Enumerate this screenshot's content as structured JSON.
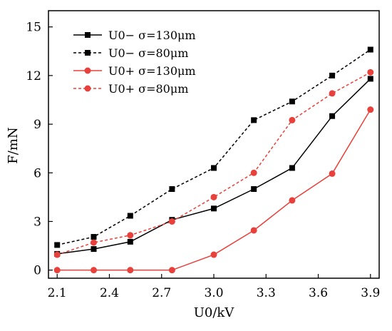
{
  "chart_data": {
    "type": "line",
    "xlabel": "U0/kV",
    "ylabel": "F/mN",
    "xlim": [
      2.05,
      3.95
    ],
    "ylim": [
      -0.5,
      16
    ],
    "x_ticks": [
      "2.1",
      "2.4",
      "2.7",
      "3.0",
      "3.3",
      "3.6",
      "3.9"
    ],
    "y_ticks": [
      "0",
      "3",
      "6",
      "9",
      "12",
      "15"
    ],
    "x": [
      2.1,
      2.31,
      2.52,
      2.76,
      3.0,
      3.23,
      3.45,
      3.68,
      3.9
    ],
    "legend_position": "top-left",
    "grid": false,
    "series": [
      {
        "name": "U0− σ=130μm",
        "color": "#000000",
        "dash": "solid",
        "marker": "square",
        "values": [
          1.0,
          1.3,
          1.75,
          3.1,
          3.8,
          5.0,
          6.3,
          9.5,
          11.8
        ]
      },
      {
        "name": "U0− σ=80μm",
        "color": "#000000",
        "dash": "dashed",
        "marker": "square",
        "values": [
          1.55,
          2.05,
          3.35,
          5.0,
          6.3,
          9.25,
          10.4,
          12.0,
          13.6
        ]
      },
      {
        "name": "U0+ σ=130μm",
        "color": "#e8403a",
        "dash": "solid",
        "marker": "circle",
        "values": [
          0.0,
          0.0,
          0.0,
          0.0,
          0.95,
          2.45,
          4.3,
          5.95,
          9.9
        ]
      },
      {
        "name": "U0+ σ=80μm",
        "color": "#e8403a",
        "dash": "dashed",
        "marker": "circle",
        "values": [
          0.95,
          1.7,
          2.15,
          3.0,
          4.5,
          6.0,
          9.25,
          10.9,
          12.2
        ]
      }
    ]
  }
}
